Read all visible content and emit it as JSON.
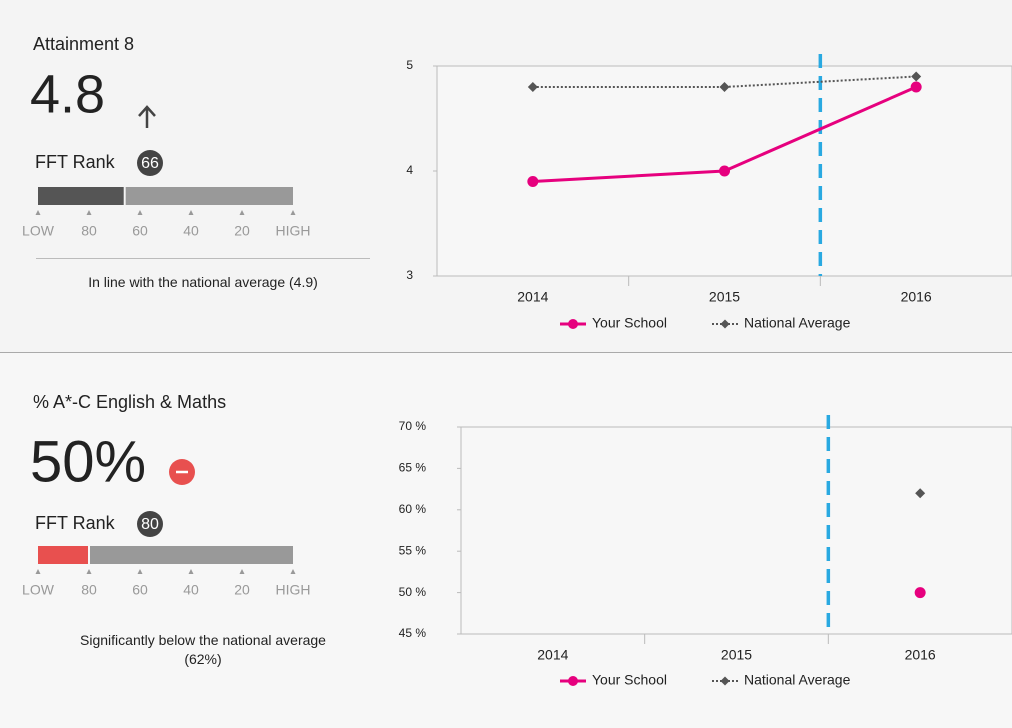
{
  "panels": [
    {
      "title": "Attainment 8",
      "value": "4.8",
      "rank_label": "FFT Rank",
      "rank": 66,
      "rank_color": "#555555",
      "rank_scale": [
        {
          "value": 100,
          "label": "LOW"
        },
        80,
        60,
        40,
        20,
        {
          "value": 0,
          "label": "HIGH"
        }
      ],
      "note": "In line with the national average (4.9)"
    },
    {
      "title": "% A*-C English & Maths",
      "value": "50%",
      "rank_label": "FFT Rank",
      "rank": 80,
      "rank_color": "#e8504f",
      "rank_scale": [
        {
          "value": 100,
          "label": "LOW"
        },
        80,
        60,
        40,
        20,
        {
          "value": 0,
          "label": "HIGH"
        }
      ],
      "note": "Significantly below the national average (62%)"
    }
  ],
  "chart_data": [
    {
      "type": "line",
      "categories": [
        "2014",
        "2015",
        "2016"
      ],
      "series": [
        {
          "name": "Your School",
          "color": "#e6007e",
          "line_style": "solid",
          "marker": "circle",
          "values": [
            3.9,
            4.0,
            4.8
          ]
        },
        {
          "name": "National Average",
          "color": "#555555",
          "line_style": "dotted",
          "marker": "diamond",
          "values": [
            4.8,
            4.8,
            4.9
          ]
        }
      ],
      "ylim": [
        3,
        5
      ],
      "yticks": [
        3,
        4,
        5
      ]
    },
    {
      "type": "line",
      "categories": [
        "2014",
        "2015",
        "2016"
      ],
      "series": [
        {
          "name": "Your School",
          "color": "#e6007e",
          "line_style": "solid",
          "marker": "circle",
          "values": [
            null,
            null,
            50
          ]
        },
        {
          "name": "National Average",
          "color": "#555555",
          "line_style": "dotted",
          "marker": "diamond",
          "values": [
            null,
            null,
            62
          ]
        }
      ],
      "ylim": [
        45,
        70
      ],
      "yticks": [
        {
          "value": 45,
          "label": "45 %"
        },
        {
          "value": 50,
          "label": "50 %"
        },
        {
          "value": 55,
          "label": "55 %"
        },
        {
          "value": 60,
          "label": "60 %"
        },
        {
          "value": 65,
          "label": "65 %"
        },
        {
          "value": 70,
          "label": "70 %"
        }
      ]
    }
  ]
}
